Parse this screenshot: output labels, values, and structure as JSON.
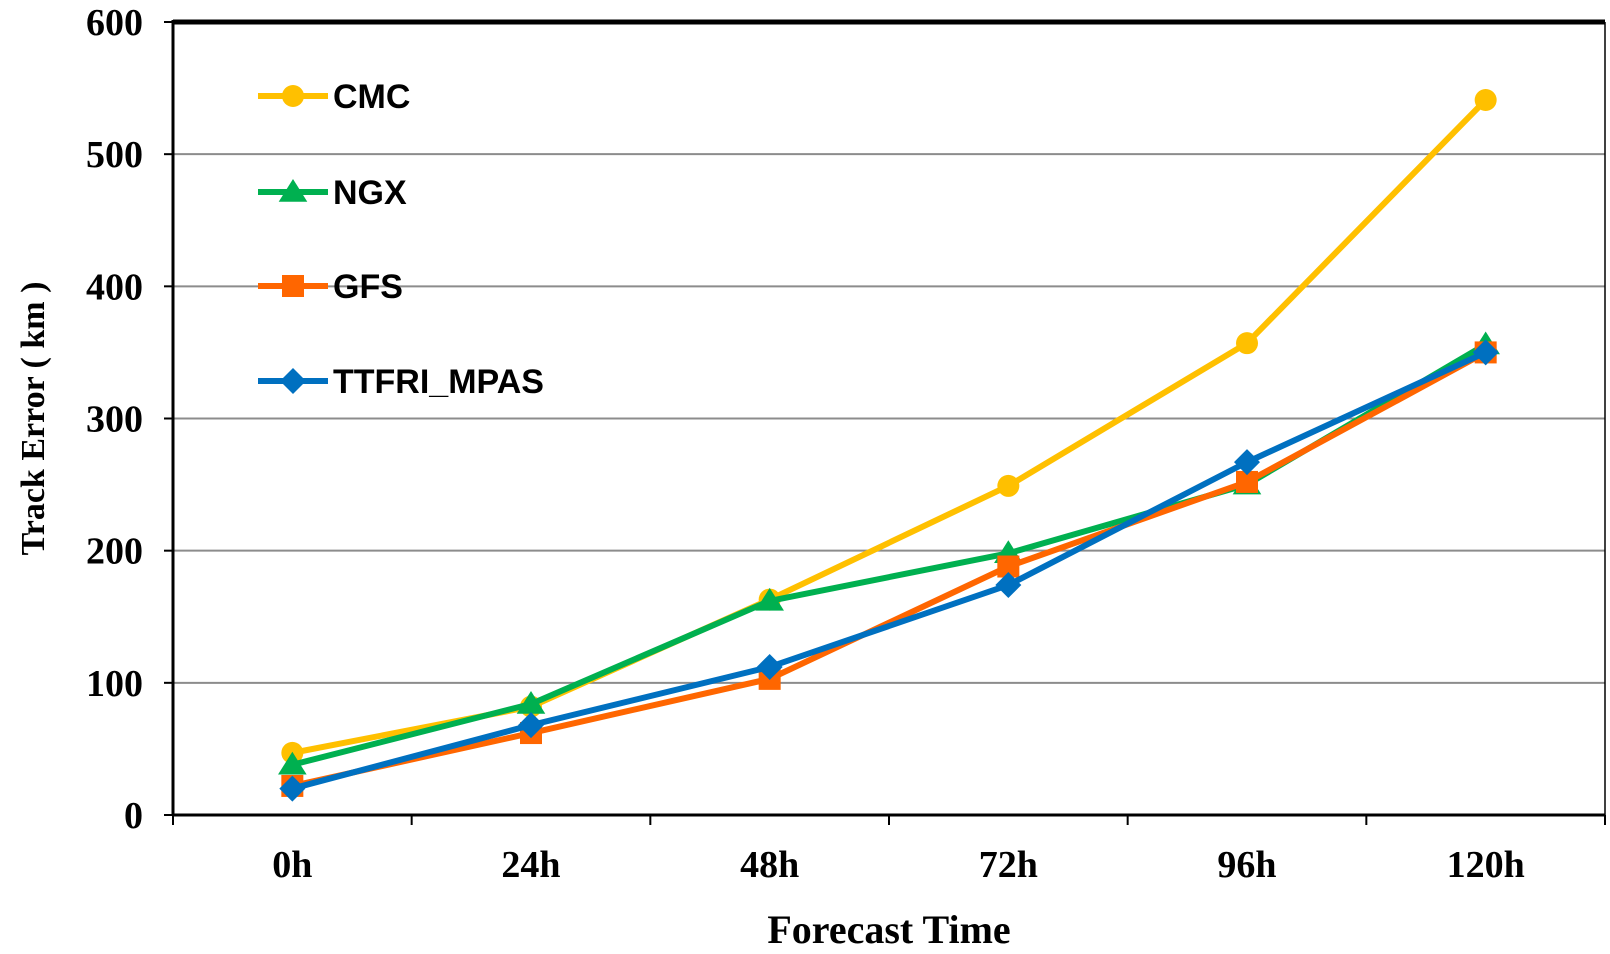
{
  "chart_data": {
    "type": "line",
    "title": "",
    "xlabel": "Forecast Time",
    "ylabel": "Track Error ( km )",
    "ylim": [
      0,
      600
    ],
    "yticks": [
      "0",
      "100",
      "200",
      "300",
      "400",
      "500",
      "600"
    ],
    "categories": [
      "0h",
      "24h",
      "48h",
      "72h",
      "96h",
      "120h"
    ],
    "grid": true,
    "legend_position": "top-left",
    "series": [
      {
        "name": "CMC",
        "color": "#FFC000",
        "marker": "circle",
        "values": [
          47,
          82,
          163,
          249,
          357,
          541
        ]
      },
      {
        "name": "NGX",
        "color": "#00B050",
        "marker": "triangle",
        "values": [
          38,
          84,
          162,
          198,
          250,
          356
        ]
      },
      {
        "name": "GFS",
        "color": "#FF6600",
        "marker": "square",
        "values": [
          22,
          62,
          103,
          188,
          252,
          350
        ]
      },
      {
        "name": "TTFRI_MPAS",
        "color": "#0070C0",
        "marker": "diamond",
        "values": [
          20,
          68,
          112,
          174,
          267,
          350
        ]
      }
    ]
  }
}
